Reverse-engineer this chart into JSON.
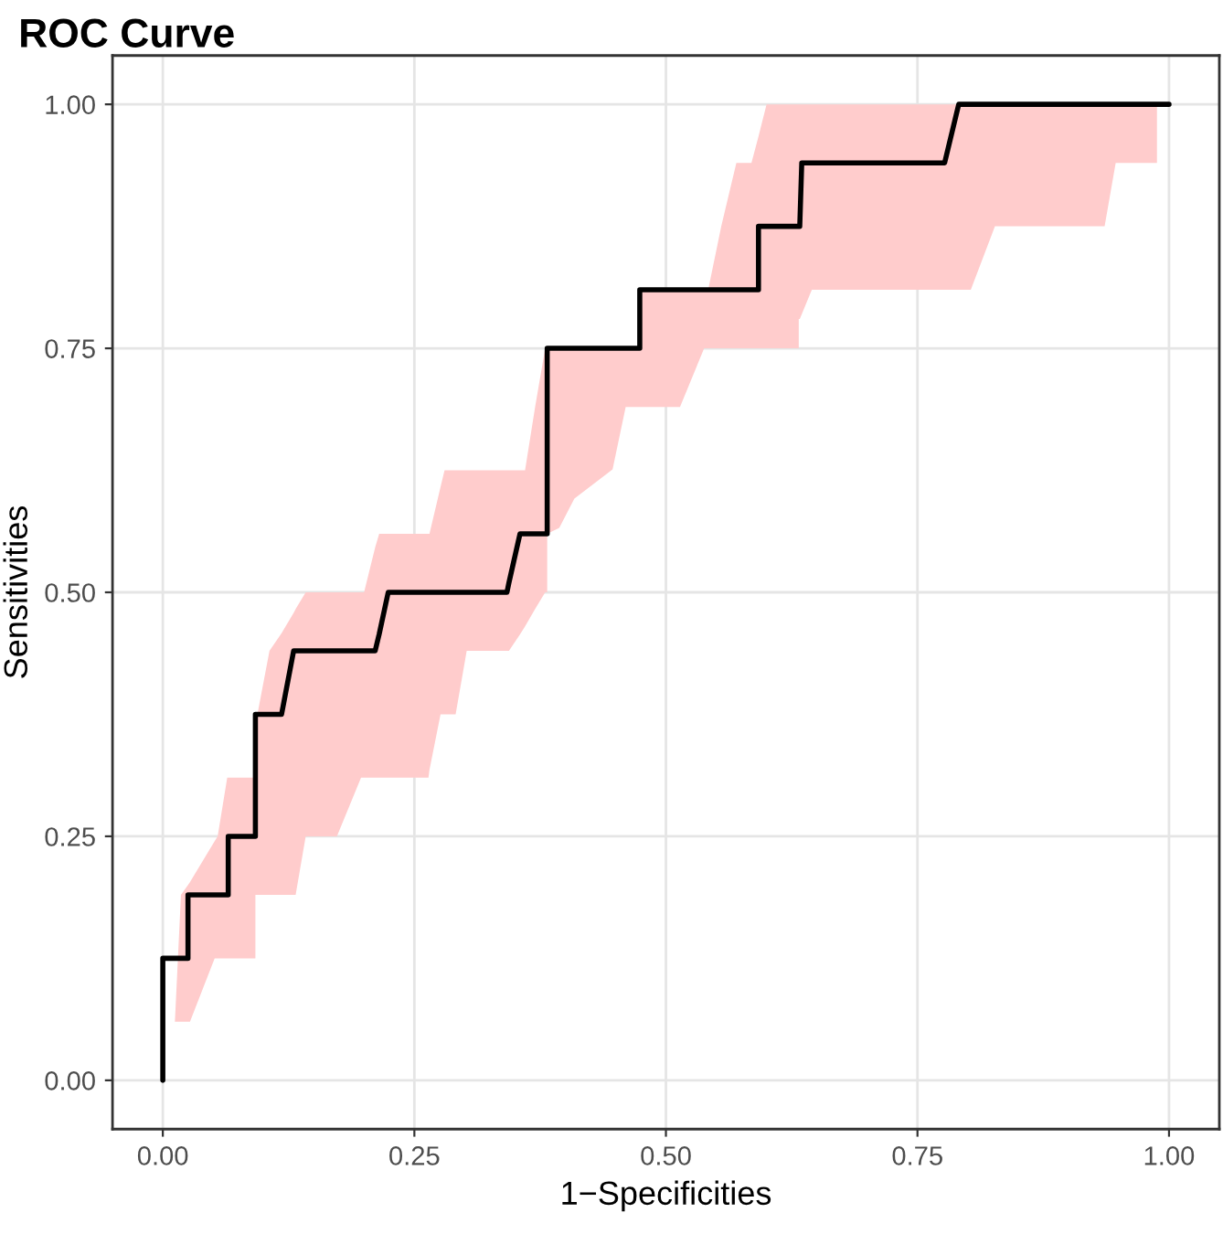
{
  "chart_data": {
    "type": "line",
    "title": "ROC Curve",
    "xlabel": "1−Specificities",
    "ylabel": "Sensitivities",
    "xlim": [
      -0.05,
      1.05
    ],
    "ylim": [
      -0.05,
      1.05
    ],
    "xticks": [
      {
        "value": 0,
        "label": "0.00"
      },
      {
        "value": 0.25,
        "label": "0.25"
      },
      {
        "value": 0.5,
        "label": "0.50"
      },
      {
        "value": 0.75,
        "label": "0.75"
      },
      {
        "value": 1,
        "label": "1.00"
      }
    ],
    "yticks": [
      {
        "value": 0,
        "label": "0.00"
      },
      {
        "value": 0.25,
        "label": "0.25"
      },
      {
        "value": 0.5,
        "label": "0.50"
      },
      {
        "value": 0.75,
        "label": "0.75"
      },
      {
        "value": 1,
        "label": "1.00"
      }
    ],
    "grid": true,
    "line_style": "solid",
    "marker": "none",
    "series": [
      {
        "color": "#000000",
        "x": [
          0,
          0,
          0.012,
          0.015,
          0.018,
          0.025,
          0.025,
          0.027,
          0.0515,
          0.0545,
          0.064,
          0.065,
          0.065,
          0.091,
          0.092,
          0.092,
          0.094,
          0.106,
          0.118,
          0.13,
          0.132,
          0.142,
          0.173,
          0.197,
          0.2,
          0.211,
          0.215,
          0.224,
          0.264,
          0.265,
          0.276,
          0.28,
          0.291,
          0.302,
          0.342,
          0.344,
          0.355,
          0.36,
          0.37,
          0.38,
          0.382,
          0.382,
          0.394,
          0.409,
          0.447,
          0.46,
          0.474,
          0.474,
          0.514,
          0.538,
          0.542,
          0.555,
          0.57,
          0.585,
          0.592,
          0.592,
          0.6,
          0.632,
          0.632,
          0.633,
          0.635,
          0.645,
          0.777,
          0.791,
          0.803,
          0.827,
          0.936,
          0.947,
          0.988,
          1.0
        ],
        "values": [
          0,
          0.125,
          0.125,
          0.125,
          0.125,
          0.125,
          0.19,
          0.19,
          0.19,
          0.19,
          0.19,
          0.19,
          0.25,
          0.25,
          0.25,
          0.375,
          0.375,
          0.375,
          0.375,
          0.44,
          0.44,
          0.44,
          0.44,
          0.44,
          0.44,
          0.44,
          0.457,
          0.5,
          0.5,
          0.5,
          0.5,
          0.5,
          0.5,
          0.5,
          0.5,
          0.51,
          0.56,
          0.56,
          0.56,
          0.56,
          0.56,
          0.75,
          0.75,
          0.75,
          0.75,
          0.75,
          0.75,
          0.81,
          0.81,
          0.81,
          0.81,
          0.81,
          0.81,
          0.81,
          0.81,
          0.875,
          0.875,
          0.875,
          0.875,
          0.875,
          0.94,
          0.94,
          0.94,
          1,
          1,
          1,
          1,
          1,
          1,
          1
        ],
        "lower": [
          0,
          0,
          0.06,
          0.06,
          0.06,
          0.06,
          0.06,
          0.06,
          0.125,
          0.125,
          0.125,
          0.125,
          0.125,
          0.125,
          0.125,
          0.19,
          0.19,
          0.19,
          0.19,
          0.19,
          0.19,
          0.25,
          0.25,
          0.31,
          0.31,
          0.31,
          0.31,
          0.31,
          0.31,
          0.318,
          0.375,
          0.375,
          0.375,
          0.44,
          0.44,
          0.44,
          0.457,
          0.465,
          0.483,
          0.5,
          0.5,
          0.56,
          0.566,
          0.596,
          0.626,
          0.69,
          0.69,
          0.69,
          0.69,
          0.75,
          0.75,
          0.75,
          0.75,
          0.75,
          0.75,
          0.75,
          0.75,
          0.75,
          0.78,
          0.78,
          0.785,
          0.81,
          0.81,
          0.81,
          0.81,
          0.875,
          0.875,
          0.94,
          0.94,
          null
        ],
        "upper": [
          0,
          0,
          0.06,
          0.125,
          0.19,
          0.2,
          0.2,
          0.203,
          0.245,
          0.25,
          0.31,
          0.31,
          0.31,
          0.31,
          0.333,
          0.333,
          0.375,
          0.44,
          0.458,
          0.479,
          0.483,
          0.5,
          0.5,
          0.5,
          0.5,
          0.546,
          0.56,
          0.56,
          0.56,
          0.56,
          0.608,
          0.625,
          0.625,
          0.625,
          0.625,
          0.625,
          0.625,
          0.625,
          0.69,
          0.75,
          0.75,
          0.75,
          0.75,
          0.75,
          0.75,
          0.75,
          0.75,
          0.81,
          0.81,
          0.81,
          0.81,
          0.875,
          0.94,
          0.94,
          0.967,
          0.967,
          1,
          1,
          1,
          1,
          1,
          1,
          1,
          1,
          1,
          1,
          1,
          1,
          1,
          null
        ]
      }
    ]
  }
}
